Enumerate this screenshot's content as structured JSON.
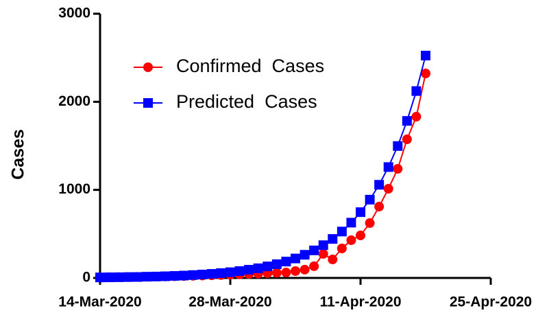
{
  "chart_data": {
    "type": "line",
    "y_label": "Cases",
    "x": [
      "14-Mar-2020",
      "15-Mar-2020",
      "16-Mar-2020",
      "17-Mar-2020",
      "18-Mar-2020",
      "19-Mar-2020",
      "20-Mar-2020",
      "21-Mar-2020",
      "22-Mar-2020",
      "23-Mar-2020",
      "24-Mar-2020",
      "25-Mar-2020",
      "26-Mar-2020",
      "27-Mar-2020",
      "28-Mar-2020",
      "29-Mar-2020",
      "30-Mar-2020",
      "31-Mar-2020",
      "01-Apr-2020",
      "02-Apr-2020",
      "03-Apr-2020",
      "04-Apr-2020",
      "05-Apr-2020",
      "06-Apr-2020",
      "07-Apr-2020",
      "08-Apr-2020",
      "09-Apr-2020",
      "10-Apr-2020",
      "11-Apr-2020",
      "12-Apr-2020",
      "13-Apr-2020",
      "14-Apr-2020",
      "15-Apr-2020",
      "16-Apr-2020",
      "17-Apr-2020",
      "18-Apr-2020"
    ],
    "series": [
      {
        "name": "Confirmed  Cases",
        "color": "#ff0000",
        "marker": "circle",
        "values": [
          8,
          9,
          10,
          11,
          12,
          14,
          15,
          17,
          19,
          21,
          24,
          27,
          30,
          33,
          37,
          41,
          45,
          50,
          55,
          58,
          62,
          78,
          94,
          133,
          273,
          210,
          335,
          429,
          483,
          623,
          810,
          1013,
          1239,
          1574,
          1831,
          2322
        ]
      },
      {
        "name": "Predicted  Cases",
        "color": "#0000ff",
        "marker": "square",
        "values": [
          6,
          7,
          8,
          10,
          11,
          14,
          16,
          19,
          23,
          27,
          33,
          39,
          46,
          55,
          65,
          78,
          93,
          110,
          131,
          156,
          186,
          221,
          263,
          313,
          372,
          443,
          527,
          628,
          747,
          889,
          1058,
          1259,
          1498,
          1783,
          2122,
          2525
        ]
      }
    ],
    "xlim": [
      "14-Mar-2020",
      "25-Apr-2020"
    ],
    "xticks": [
      "14-Mar-2020",
      "28-Mar-2020",
      "11-Apr-2020",
      "25-Apr-2020"
    ],
    "ylim": [
      0,
      3000
    ],
    "yticks": [
      0,
      1000,
      2000,
      3000
    ],
    "legend": "upper left"
  }
}
